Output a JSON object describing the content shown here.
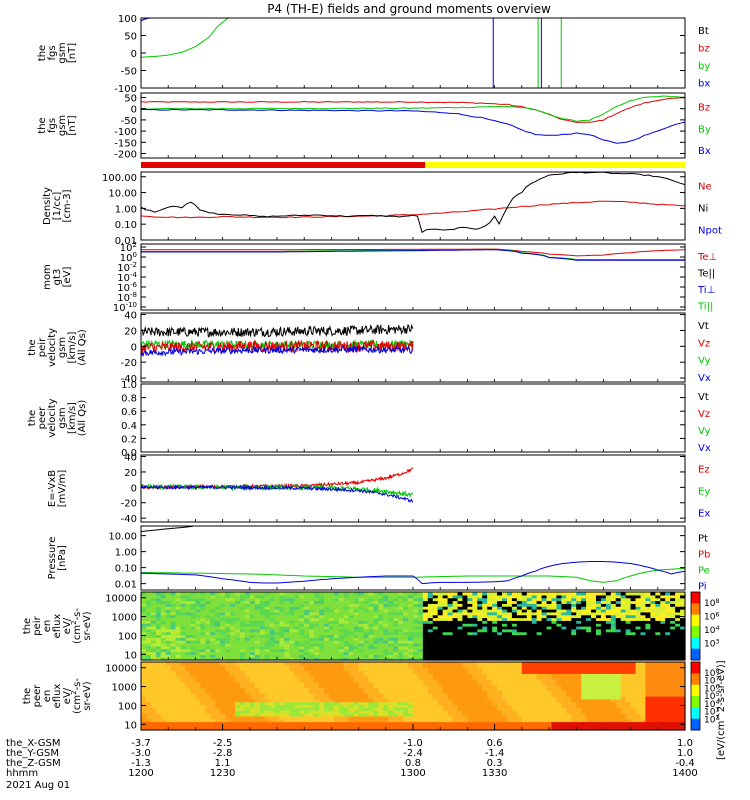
{
  "title": "P4 (TH-E) fields and ground moments overview",
  "date_label": "2021 Aug 01",
  "colors": {
    "black": "#000000",
    "red": "#e00000",
    "green": "#00c800",
    "blue": "#0000e0",
    "yellow": "#ffff00"
  },
  "chart_data": [
    {
      "type": "line",
      "panel": "fgs-fixed",
      "ylabel": [
        "the",
        "fgs",
        "gsm",
        "[nT]"
      ],
      "ylim": [
        -100,
        100
      ],
      "yticks": [
        100,
        50,
        0,
        -50,
        -100
      ],
      "legend": [
        {
          "label": "Bt",
          "color": "black"
        },
        {
          "label": "bz",
          "color": "red"
        },
        {
          "label": "by",
          "color": "green"
        },
        {
          "label": "bx",
          "color": "blue"
        }
      ],
      "series": [
        {
          "name": "by",
          "color": "green",
          "x": [
            1200,
            1205,
            1210,
            1215,
            1220,
            1225,
            1228,
            1232
          ],
          "y": [
            -12,
            -10,
            -6,
            2,
            18,
            45,
            75,
            100
          ]
        },
        {
          "name": "bx",
          "color": "blue",
          "x": [
            1200,
            1201,
            1202,
            1203
          ],
          "y": [
            92,
            96,
            98,
            100
          ]
        }
      ],
      "vlines": [
        {
          "x": 1329.5,
          "color": "blue"
        },
        {
          "x": 1346,
          "color": "green"
        },
        {
          "x": 1347.2,
          "color": "blue"
        },
        {
          "x": 1354.5,
          "color": "green"
        }
      ]
    },
    {
      "type": "line",
      "panel": "fgs-auto",
      "ylabel": [
        "the",
        "fgs",
        "gsm",
        "[nT]"
      ],
      "ylim": [
        -220,
        70
      ],
      "yticks": [
        50,
        0,
        -50,
        -100,
        -150,
        -200
      ],
      "legend": [
        {
          "label": "Bz",
          "color": "red"
        },
        {
          "label": "By",
          "color": "green"
        },
        {
          "label": "Bx",
          "color": "blue"
        }
      ],
      "series": [
        {
          "name": "Bz",
          "color": "red",
          "x": [
            1200,
            1230,
            1300,
            1315,
            1325,
            1335,
            1340,
            1345,
            1350,
            1355,
            1360,
            1365,
            1370,
            1375,
            1380,
            1385,
            1390,
            1395,
            1400
          ],
          "y": [
            30,
            30,
            30,
            28,
            25,
            18,
            8,
            -5,
            -25,
            -50,
            -60,
            -62,
            -50,
            -20,
            5,
            25,
            38,
            45,
            48
          ]
        },
        {
          "name": "By",
          "color": "green",
          "x": [
            1200,
            1230,
            1300,
            1315,
            1325,
            1335,
            1340,
            1345,
            1350,
            1355,
            1360,
            1365,
            1370,
            1375,
            1380,
            1385,
            1390,
            1395,
            1400
          ],
          "y": [
            0,
            0,
            2,
            5,
            8,
            10,
            5,
            -5,
            -25,
            -45,
            -55,
            -50,
            -25,
            10,
            35,
            50,
            55,
            55,
            50
          ]
        },
        {
          "name": "Bx",
          "color": "blue",
          "x": [
            1200,
            1230,
            1300,
            1315,
            1325,
            1335,
            1340,
            1345,
            1350,
            1355,
            1360,
            1365,
            1370,
            1375,
            1380,
            1385,
            1390,
            1395,
            1400
          ],
          "y": [
            -5,
            -5,
            -10,
            -20,
            -40,
            -70,
            -95,
            -115,
            -120,
            -115,
            -110,
            -115,
            -140,
            -155,
            -145,
            -120,
            -100,
            -75,
            -60
          ]
        }
      ]
    },
    {
      "type": "status_bar",
      "panel": "mode-bar",
      "segments": [
        {
          "x0": 1200,
          "x1": 1304.5,
          "color": "red"
        },
        {
          "x0": 1304.5,
          "x1": 1400,
          "color": "yellow"
        }
      ]
    },
    {
      "type": "line",
      "panel": "density",
      "yscale": "log",
      "ylabel": [
        "Density",
        "[1/cc]",
        "[cm-3]"
      ],
      "ylim": [
        0.01,
        200
      ],
      "yticks": [
        "100.00",
        "10.00",
        "1.00",
        "0.10",
        "0.01"
      ],
      "ytick_values": [
        100,
        10,
        1,
        0.1,
        0.01
      ],
      "legend": [
        {
          "label": "Ne",
          "color": "red"
        },
        {
          "label": "Ni",
          "color": "black"
        },
        {
          "label": "Npot",
          "color": "blue"
        }
      ],
      "series": [
        {
          "name": "Ne",
          "color": "red",
          "x": [
            1200,
            1205,
            1210,
            1215,
            1220,
            1230,
            1240,
            1250,
            1260,
            1270,
            1280,
            1290,
            1300,
            1310,
            1320,
            1330,
            1340,
            1350,
            1360,
            1370,
            1380,
            1390,
            1400
          ],
          "y": [
            0.35,
            0.3,
            0.28,
            0.27,
            0.27,
            0.3,
            0.28,
            0.28,
            0.28,
            0.3,
            0.32,
            0.35,
            0.4,
            0.5,
            0.65,
            0.9,
            1.3,
            1.8,
            2.3,
            2.8,
            2.5,
            1.8,
            1.4
          ]
        },
        {
          "name": "Ni",
          "color": "black",
          "x": [
            1200,
            1202,
            1205,
            1208,
            1212,
            1215,
            1218,
            1222,
            1228,
            1235,
            1245,
            1255,
            1265,
            1275,
            1285,
            1295,
            1300,
            1302,
            1303,
            1306,
            1312,
            1318,
            1324,
            1328,
            1330,
            1331,
            1333,
            1335,
            1340,
            1345,
            1350,
            1358,
            1365,
            1370,
            1375,
            1380,
            1385,
            1390,
            1395,
            1400
          ],
          "y": [
            1.2,
            0.8,
            0.6,
            0.9,
            1.5,
            1.1,
            2.5,
            0.7,
            0.45,
            0.4,
            0.3,
            0.35,
            0.38,
            0.32,
            0.35,
            0.3,
            0.35,
            0.3,
            0.03,
            0.05,
            0.04,
            0.06,
            0.05,
            0.1,
            0.3,
            0.06,
            0.2,
            1.5,
            10,
            50,
            120,
            180,
            190,
            180,
            160,
            150,
            130,
            100,
            60,
            30
          ]
        }
      ]
    },
    {
      "type": "line",
      "panel": "temperature",
      "yscale": "log",
      "ylabel": [
        "mom",
        "gt3",
        "[eV]"
      ],
      "ylim": [
        1e-11,
        10000.0
      ],
      "yticks": [
        "10^2",
        "10^0",
        "10^-2",
        "10^-4",
        "10^-6",
        "10^-8",
        "10^-10"
      ],
      "legend": [
        {
          "label": "Te⊥",
          "color": "red"
        },
        {
          "label": "Te||",
          "color": "black"
        },
        {
          "label": "Ti⊥",
          "color": "blue"
        },
        {
          "label": "Ti||",
          "color": "green"
        }
      ],
      "series": [
        {
          "name": "Te⊥",
          "color": "red",
          "x": [
            1200,
            1250,
            1300,
            1330,
            1340,
            1350,
            1360,
            1370,
            1380,
            1390,
            1400
          ],
          "y": [
            500,
            500,
            600,
            700,
            200,
            50,
            20,
            30,
            100,
            300,
            500
          ]
        },
        {
          "name": "Ti||",
          "color": "green",
          "x": [
            1200,
            1250,
            1300,
            1330,
            1340,
            1350,
            1360,
            1370,
            1380,
            1390,
            1400
          ],
          "y": [
            200,
            200,
            400,
            600,
            100,
            10,
            3,
            3,
            3,
            3,
            3
          ]
        },
        {
          "name": "Ti⊥",
          "color": "blue",
          "x": [
            1200,
            1250,
            1300,
            1330,
            1340,
            1350,
            1360,
            1370,
            1380,
            1390,
            1400
          ],
          "y": [
            150,
            150,
            300,
            500,
            80,
            8,
            2,
            2,
            2,
            2,
            2
          ]
        }
      ]
    },
    {
      "type": "line",
      "panel": "peir-velocity",
      "ylabel": [
        "the",
        "peir",
        "velocity",
        "gsm",
        "[km/s]",
        "(All Qs)"
      ],
      "ylim": [
        -45,
        42
      ],
      "yticks": [
        40,
        20,
        0,
        -20,
        -40
      ],
      "legend": [
        {
          "label": "Vt",
          "color": "black"
        },
        {
          "label": "Vz",
          "color": "red"
        },
        {
          "label": "Vy",
          "color": "green"
        },
        {
          "label": "Vx",
          "color": "blue"
        }
      ],
      "series": [
        {
          "name": "Vt",
          "color": "black",
          "x": [
            1200,
            1240,
            1280,
            1300
          ],
          "y": [
            18,
            18,
            20,
            22
          ],
          "noise": 6
        },
        {
          "name": "Vy",
          "color": "green",
          "x": [
            1200,
            1240,
            1280,
            1300
          ],
          "y": [
            3,
            2,
            2,
            3
          ],
          "noise": 5
        },
        {
          "name": "Vz",
          "color": "red",
          "x": [
            1200,
            1240,
            1280,
            1300
          ],
          "y": [
            -2,
            0,
            0,
            0
          ],
          "noise": 7
        },
        {
          "name": "Vx",
          "color": "blue",
          "x": [
            1200,
            1240,
            1280,
            1300
          ],
          "y": [
            -8,
            -5,
            -4,
            -5
          ],
          "noise": 4
        }
      ]
    },
    {
      "type": "line",
      "panel": "peer-velocity",
      "ylabel": [
        "the",
        "peer",
        "velocity",
        "gsm",
        "[km/s]",
        "(All Qs)"
      ],
      "ylim": [
        0,
        1
      ],
      "yticks": [
        "1.0",
        "0.8",
        "0.6",
        "0.4",
        "0.2",
        "0.0"
      ],
      "legend": [
        {
          "label": "Vt",
          "color": "black"
        },
        {
          "label": "Vz",
          "color": "red"
        },
        {
          "label": "Vy",
          "color": "green"
        },
        {
          "label": "Vx",
          "color": "blue"
        }
      ],
      "series": []
    },
    {
      "type": "line",
      "panel": "efield",
      "ylabel": [
        "E=-VxB",
        "[mV/m]"
      ],
      "ylim": [
        -45,
        42
      ],
      "yticks": [
        40,
        20,
        0,
        -20,
        -40
      ],
      "legend": [
        {
          "label": "Ez",
          "color": "red"
        },
        {
          "label": "Ey",
          "color": "green"
        },
        {
          "label": "Ex",
          "color": "blue"
        }
      ],
      "series": [
        {
          "name": "Ez",
          "color": "red",
          "x": [
            1200,
            1230,
            1260,
            1280,
            1290,
            1296,
            1300
          ],
          "y": [
            0,
            1,
            2,
            6,
            12,
            18,
            24
          ],
          "noise": 2
        },
        {
          "name": "Ey",
          "color": "green",
          "x": [
            1200,
            1230,
            1260,
            1280,
            1290,
            1296,
            1300
          ],
          "y": [
            1,
            0,
            0,
            -2,
            -5,
            -8,
            -10
          ],
          "noise": 3
        },
        {
          "name": "Ex",
          "color": "blue",
          "x": [
            1200,
            1230,
            1260,
            1280,
            1290,
            1296,
            1300
          ],
          "y": [
            0,
            0,
            -1,
            -4,
            -9,
            -14,
            -18
          ],
          "noise": 2
        }
      ]
    },
    {
      "type": "line",
      "panel": "pressure",
      "yscale": "log",
      "ylabel": [
        "Pressure",
        "[nPa]"
      ],
      "ylim": [
        0.004,
        40
      ],
      "yticks": [
        "10.00",
        "1.00",
        "0.10",
        "0.01"
      ],
      "ytick_values": [
        10,
        1,
        0.1,
        0.01
      ],
      "legend": [
        {
          "label": "Pt",
          "color": "black"
        },
        {
          "label": "Pb",
          "color": "red"
        },
        {
          "label": "Pe",
          "color": "green"
        },
        {
          "label": "Pi",
          "color": "blue"
        }
      ],
      "series": [
        {
          "name": "Pt",
          "color": "black",
          "x": [
            1200,
            1205,
            1210,
            1215,
            1219
          ],
          "y": [
            18,
            22,
            27,
            32,
            38
          ]
        },
        {
          "name": "Pe",
          "color": "green",
          "x": [
            1200,
            1220,
            1240,
            1260,
            1280,
            1300,
            1320,
            1340,
            1350,
            1360,
            1365,
            1370,
            1375,
            1380,
            1385,
            1390,
            1400
          ],
          "y": [
            0.05,
            0.045,
            0.04,
            0.03,
            0.025,
            0.025,
            0.03,
            0.03,
            0.03,
            0.025,
            0.015,
            0.012,
            0.015,
            0.03,
            0.05,
            0.07,
            0.09
          ]
        },
        {
          "name": "Pi",
          "color": "blue",
          "x": [
            1200,
            1210,
            1220,
            1230,
            1240,
            1245,
            1250,
            1260,
            1270,
            1280,
            1290,
            1300,
            1303,
            1310,
            1320,
            1330,
            1335,
            1340,
            1345,
            1350,
            1355,
            1360,
            1365,
            1370,
            1375,
            1380,
            1385,
            1390,
            1395,
            1400
          ],
          "y": [
            0.045,
            0.04,
            0.035,
            0.02,
            0.012,
            0.011,
            0.011,
            0.014,
            0.02,
            0.025,
            0.03,
            0.03,
            0.01,
            0.012,
            0.012,
            0.013,
            0.015,
            0.03,
            0.06,
            0.12,
            0.18,
            0.22,
            0.24,
            0.24,
            0.22,
            0.18,
            0.12,
            0.07,
            0.04,
            0.06
          ]
        }
      ]
    },
    {
      "type": "heatmap",
      "panel": "peir-spectrogram",
      "ylabel": [
        "the",
        "peir",
        "en",
        "eflux",
        "eV/",
        "(cm^2-s-",
        "sr-eV)"
      ],
      "yscale": "log",
      "yticks": [
        "10000",
        "1000",
        "100",
        "10"
      ],
      "ytick_values": [
        10000,
        1000,
        100,
        10
      ],
      "colorbar_ticks": [
        "10^8",
        "10^6",
        "10^4",
        "10^3"
      ],
      "zlabel": "eV/(cm^2-s-sr-eV)",
      "data_end": 1304.5
    },
    {
      "type": "heatmap",
      "panel": "peer-spectrogram",
      "ylabel": [
        "the",
        "peer",
        "en",
        "eflux",
        "eV/",
        "(cm^2-s-",
        "sr-eV)"
      ],
      "yscale": "log",
      "yticks": [
        "10000",
        "1000",
        "100",
        "10"
      ],
      "ytick_values": [
        10000,
        1000,
        100,
        10
      ],
      "colorbar_ticks": [
        "10^8",
        "10^7",
        "10^6",
        "10^5",
        "10^4",
        "10^3",
        "10^2"
      ],
      "zlabel": "eV/(cm^2-s-sr-eV)"
    }
  ],
  "x_axis": {
    "xlim": [
      1200,
      1400
    ],
    "ticks": [
      {
        "x": 1200,
        "X": "-3.7",
        "Y": "-3.0",
        "Z": "-1.3",
        "hhmm": "1200"
      },
      {
        "x": 1230,
        "X": "-2.5",
        "Y": "-2.8",
        "Z": "1.1",
        "hhmm": "1230"
      },
      {
        "x": 1300,
        "X": "-1.0",
        "Y": "-2.4",
        "Z": "0.8",
        "hhmm": "1300"
      },
      {
        "x": 1330,
        "X": "0.6",
        "Y": "-1.4",
        "Z": "0.3",
        "hhmm": "1330"
      },
      {
        "x": 1400,
        "X": "1.0",
        "Y": "1.0",
        "Z": "-0.4",
        "hhmm": "1400"
      }
    ],
    "row_labels": [
      "the_X-GSM",
      "the_Y-GSM",
      "the_Z-GSM",
      "hhmm"
    ]
  },
  "side_label": "[eV/(cm^2-s-sr-eV)]"
}
